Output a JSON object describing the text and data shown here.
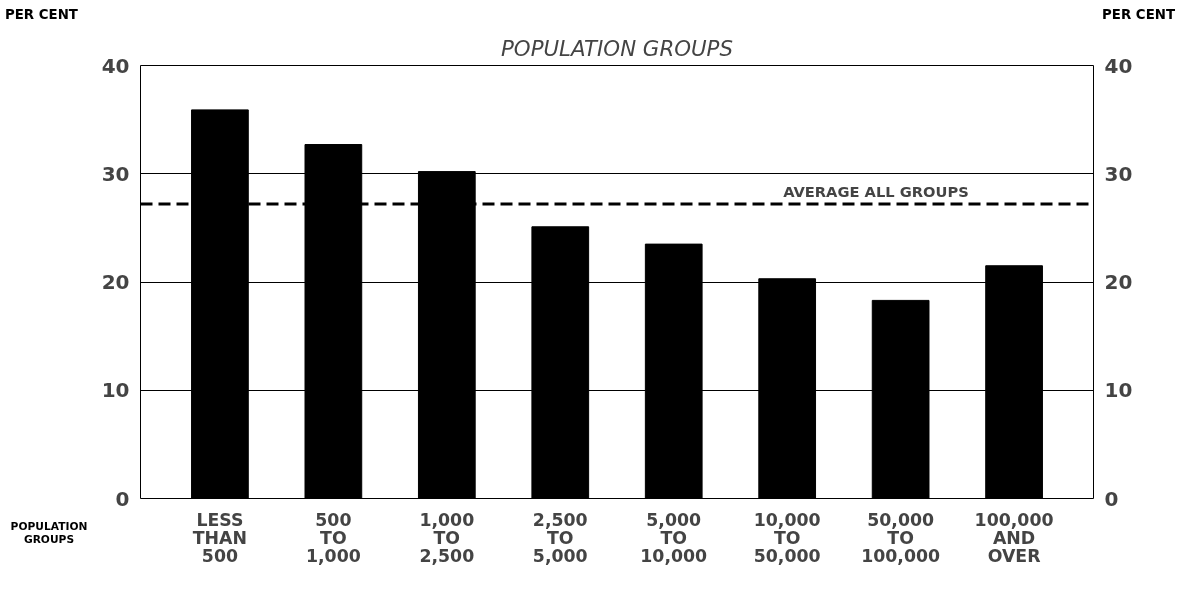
{
  "chart_data": {
    "type": "bar",
    "title": "POPULATION GROUPS",
    "xlabel": "POPULATION\nGROUPS",
    "ylabel": "PER CENT",
    "y2label": "PER CENT",
    "categories": [
      "LESS\nTHAN\n500",
      "500\nTO\n1,000",
      "1,000\nTO\n2,500",
      "2,500\nTO\n5,000",
      "5,000\nTO\n10,000",
      "10,000\nTO\n50,000",
      "50,000\nTO\n100,000",
      "100,000\nAND\nOVER"
    ],
    "values": [
      35.9,
      32.7,
      30.2,
      25.1,
      23.5,
      20.3,
      18.3,
      21.5
    ],
    "color": "#000000",
    "ylim": [
      0,
      40
    ],
    "yticks": [
      0,
      10,
      20,
      30,
      40
    ],
    "y2lim": [
      0,
      40
    ],
    "y2ticks": [
      0,
      10,
      20,
      30,
      40
    ],
    "grid": "y",
    "ref_lines": [
      {
        "axis": "y",
        "value": 27.2,
        "label": "AVERAGE ALL GROUPS",
        "color": "#000000",
        "line_style": "dashed"
      }
    ]
  }
}
